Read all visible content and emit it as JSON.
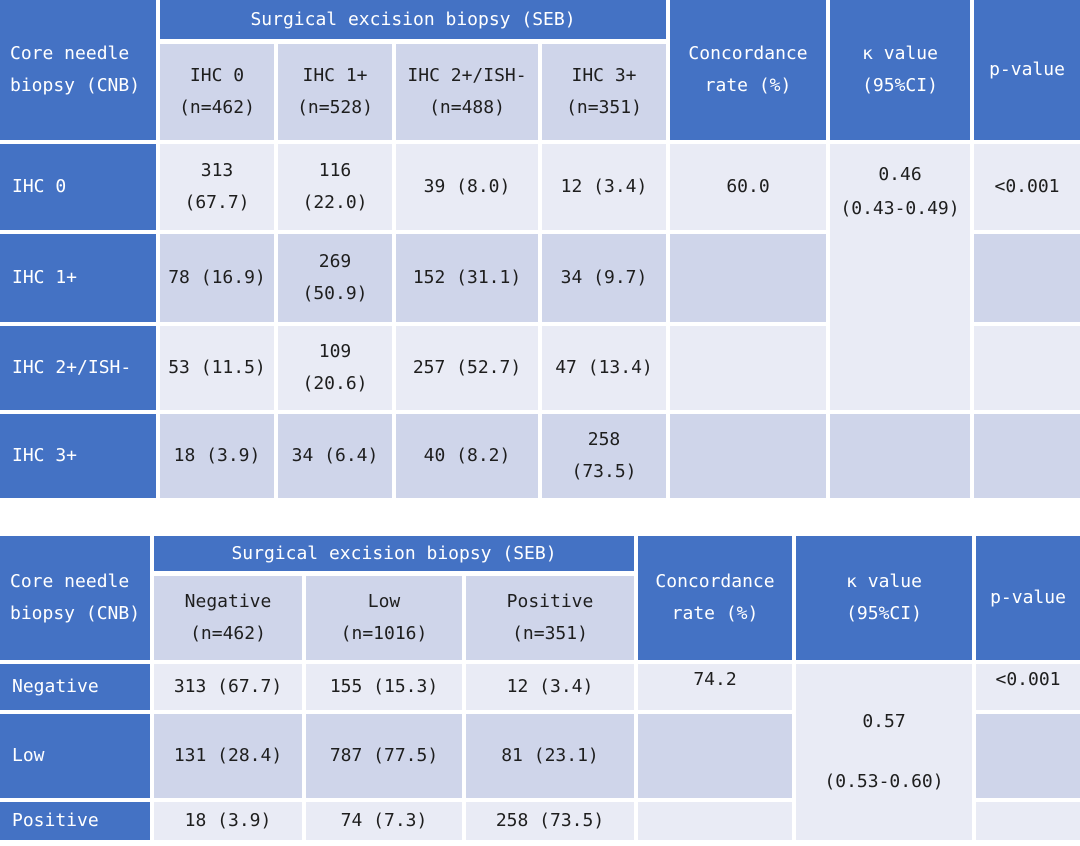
{
  "table1": {
    "row_header_label_line1": "Core needle",
    "row_header_label_line2": "biopsy (CNB)",
    "seb_title": "Surgical excision biopsy (SEB)",
    "concordance_label_line1": "Concordance",
    "concordance_label_line2": "rate (%)",
    "kappa_label_line1": "κ value",
    "kappa_label_line2": "(95%CI)",
    "pvalue_label": "p-value",
    "columns": [
      {
        "label": "IHC 0",
        "n": "(n=462)"
      },
      {
        "label": "IHC 1+",
        "n": "(n=528)"
      },
      {
        "label": "IHC 2+/ISH-",
        "n": "(n=488)"
      },
      {
        "label": "IHC 3+",
        "n": "(n=351)"
      }
    ],
    "rows": [
      {
        "label": "IHC 0",
        "cells": [
          [
            "313",
            "(67.7)"
          ],
          [
            "116",
            "(22.0)"
          ],
          [
            "39 (8.0)"
          ],
          [
            "12 (3.4)"
          ]
        ]
      },
      {
        "label": "IHC 1+",
        "cells": [
          [
            "78 (16.9)"
          ],
          [
            "269",
            "(50.9)"
          ],
          [
            "152 (31.1)"
          ],
          [
            "34 (9.7)"
          ]
        ]
      },
      {
        "label": "IHC 2+/ISH-",
        "cells": [
          [
            "53 (11.5)"
          ],
          [
            "109",
            "(20.6)"
          ],
          [
            "257 (52.7)"
          ],
          [
            "47 (13.4)"
          ]
        ]
      },
      {
        "label": "IHC 3+",
        "cells": [
          [
            "18 (3.9)"
          ],
          [
            "34 (6.4)"
          ],
          [
            "40 (8.2)"
          ],
          [
            "258",
            "(73.5)"
          ]
        ]
      }
    ],
    "concordance": "60.0",
    "kappa_line1": "0.46",
    "kappa_line2": "(0.43-0.49)",
    "pvalue": "<0.001"
  },
  "table2": {
    "row_header_label_line1": "Core needle",
    "row_header_label_line2": "biopsy (CNB)",
    "seb_title": "Surgical excision biopsy (SEB)",
    "concordance_label_line1": "Concordance",
    "concordance_label_line2": "rate (%)",
    "kappa_label_line1": "κ value",
    "kappa_label_line2": "(95%CI)",
    "pvalue_label": "p-value",
    "columns": [
      {
        "label": "Negative",
        "n": "(n=462)"
      },
      {
        "label": "Low",
        "n": "(n=1016)"
      },
      {
        "label": "Positive",
        "n": "(n=351)"
      }
    ],
    "rows": [
      {
        "label": "Negative",
        "cells": [
          "313 (67.7)",
          "155 (15.3)",
          "12 (3.4)"
        ]
      },
      {
        "label": "Low",
        "cells": [
          "131 (28.4)",
          "787 (77.5)",
          "81 (23.1)"
        ]
      },
      {
        "label": "Positive",
        "cells": [
          "18 (3.9)",
          "74 (7.3)",
          "258 (73.5)"
        ]
      }
    ],
    "concordance": "74.2",
    "kappa_line1": "0.57",
    "kappa_line2": "(0.53-0.60)",
    "pvalue": "<0.001"
  },
  "colors": {
    "header_blue": "#4472c4",
    "band_dark": "#cfd5ea",
    "band_light": "#e9ebf5"
  }
}
